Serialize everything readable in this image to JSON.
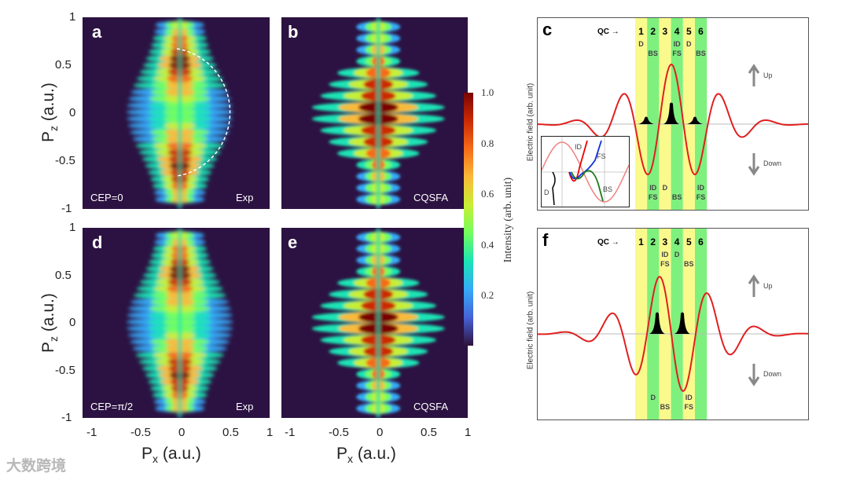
{
  "chart_data": [
    {
      "type": "heatmap",
      "panel": "a",
      "tag_left": "CEP=0",
      "tag_right": "Exp",
      "xlabel": "Px (a.u.)",
      "ylabel": "Pz (a.u.)",
      "xlim": [
        -1,
        1
      ],
      "ylim": [
        -1,
        1
      ]
    },
    {
      "type": "heatmap",
      "panel": "b",
      "tag_right": "CQSFA",
      "xlim": [
        -1,
        1
      ],
      "ylim": [
        -1,
        1
      ]
    },
    {
      "type": "heatmap",
      "panel": "d",
      "tag_left": "CEP=π/2",
      "tag_right": "Exp",
      "xlim": [
        -1,
        1
      ],
      "ylim": [
        -1,
        1
      ]
    },
    {
      "type": "heatmap",
      "panel": "e",
      "tag_right": "CQSFA",
      "xlim": [
        -1,
        1
      ],
      "ylim": [
        -1,
        1
      ]
    },
    {
      "type": "line",
      "panel": "c",
      "ylabel": "Electric field (arb. unit)",
      "cep": 0
    },
    {
      "type": "line",
      "panel": "f",
      "ylabel": "Electric field (arb. unit)",
      "cep": "π/2"
    }
  ],
  "axes": {
    "y_ticks": [
      "1",
      "0.5",
      "0",
      "-0.5",
      "-1"
    ],
    "x_ticks": [
      "-1",
      "-0.5",
      "0",
      "0.5",
      "1"
    ],
    "y_label_main": "P",
    "y_label_sub": "z",
    "y_label_unit": " (a.u.)",
    "x_label_main": "P",
    "x_label_sub": "x",
    "x_label_unit": " (a.u.)"
  },
  "panels": {
    "a": {
      "letter": "a",
      "left": "CEP=0",
      "right": "Exp"
    },
    "b": {
      "letter": "b",
      "right": "CQSFA"
    },
    "d": {
      "letter": "d",
      "left": "CEP=π/2",
      "right": "Exp"
    },
    "e": {
      "letter": "e",
      "right": "CQSFA"
    }
  },
  "colorbar": {
    "label": "Intensity (arb. unit)",
    "ticks": [
      "1.0",
      "0.8",
      "0.6",
      "0.4",
      "0.2"
    ],
    "range": [
      0,
      1
    ]
  },
  "field": {
    "ylabel": "Electric field (arb. unit)",
    "qc": "QC →",
    "cols": [
      "1",
      "2",
      "3",
      "4",
      "5",
      "6"
    ],
    "up": "Up",
    "down": "Down",
    "stripe_colors": [
      "#fafa8c",
      "#7ef07e"
    ],
    "curve_color": "#e02020",
    "c": {
      "letter": "c",
      "top": [
        [
          "D"
        ],
        [
          "",
          "BS"
        ],
        [],
        [
          "ID",
          "FS"
        ],
        [
          "D"
        ],
        [
          "",
          "BS"
        ]
      ],
      "bottom": [
        [],
        [
          "ID",
          "FS"
        ],
        [
          "D"
        ],
        [
          "",
          "BS"
        ],
        [],
        [
          "ID",
          "FS"
        ]
      ],
      "inset": {
        "id": "ID",
        "fs": "FS",
        "d": "D",
        "bs": "BS"
      }
    },
    "f": {
      "letter": "f",
      "top": [
        [],
        [],
        [
          "ID",
          "FS"
        ],
        [
          "D"
        ],
        [
          "",
          "BS"
        ],
        []
      ],
      "bottom": [
        [],
        [
          "D"
        ],
        [
          "",
          "BS"
        ],
        [],
        [
          "ID",
          "FS"
        ],
        []
      ]
    }
  },
  "watermark": "大数跨境"
}
